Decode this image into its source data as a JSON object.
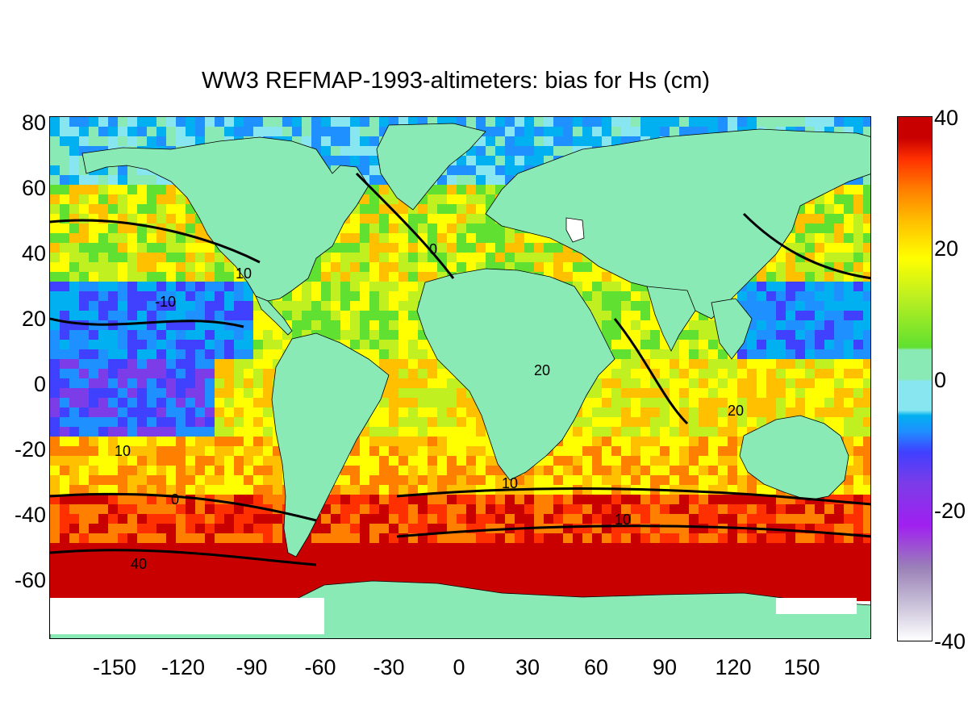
{
  "title": "WW3 REFMAP-1993-altimeters: bias for Hs (cm)",
  "map": {
    "projection": "plate-carree",
    "lon_range": [
      -180,
      180
    ],
    "lat_range": [
      -78,
      82
    ],
    "y_ticks": [
      "80",
      "60",
      "40",
      "20",
      "0",
      "-20",
      "-40",
      "-60"
    ],
    "y_tick_values": [
      80,
      60,
      40,
      20,
      0,
      -20,
      -40,
      -60
    ],
    "x_ticks": [
      "-150",
      "-120",
      "-90",
      "-60",
      "-30",
      "0",
      "30",
      "60",
      "90",
      "120",
      "150"
    ],
    "x_tick_values": [
      -150,
      -120,
      -90,
      -60,
      -30,
      0,
      30,
      60,
      90,
      120,
      150
    ],
    "land_color": "#8aeab5",
    "ice_color": "#ffffff",
    "contour_color": "#000000",
    "contour_labels": [
      "10",
      "10",
      "10",
      "10",
      "20",
      "20",
      "40",
      "0",
      "0",
      "-10"
    ],
    "colormap": [
      "#ffffff",
      "#c8c0d8",
      "#9a80b8",
      "#a020f0",
      "#7c3ce8",
      "#4040ff",
      "#1e90ff",
      "#00b0f0",
      "#87e6f0",
      "#8aeab5",
      "#60e030",
      "#c0f020",
      "#ffff00",
      "#ffc000",
      "#ff8000",
      "#ff3000",
      "#c80000"
    ]
  },
  "colorbar": {
    "ticks": [
      "40",
      "20",
      "0",
      "-20",
      "-40"
    ],
    "tick_values": [
      40,
      20,
      0,
      -20,
      -40
    ],
    "range": [
      -40,
      40
    ]
  }
}
